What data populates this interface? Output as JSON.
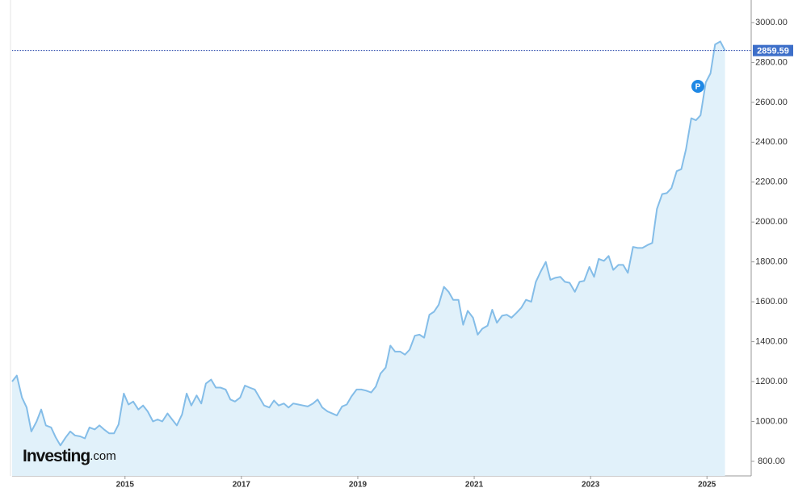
{
  "chart_data": {
    "type": "area",
    "color": "#84bde8",
    "fill_color": "#e1f1fa",
    "logo": "Investing",
    "logo_suffix": ".com",
    "last_label": "2859.59",
    "x": [
      2013.06,
      2013.14,
      2013.23,
      2013.31,
      2013.39,
      2013.48,
      2013.56,
      2013.64,
      2013.73,
      2013.81,
      2013.89,
      2013.98,
      2014.06,
      2014.14,
      2014.23,
      2014.31,
      2014.39,
      2014.48,
      2014.56,
      2014.64,
      2014.73,
      2014.81,
      2014.89,
      2014.98,
      2015.06,
      2015.14,
      2015.23,
      2015.31,
      2015.39,
      2015.48,
      2015.56,
      2015.64,
      2015.73,
      2015.81,
      2015.89,
      2015.98,
      2016.06,
      2016.14,
      2016.23,
      2016.31,
      2016.39,
      2016.48,
      2016.56,
      2016.64,
      2016.73,
      2016.81,
      2016.89,
      2016.98,
      2017.06,
      2017.14,
      2017.23,
      2017.31,
      2017.39,
      2017.48,
      2017.56,
      2017.64,
      2017.73,
      2017.81,
      2017.89,
      2017.98,
      2018.06,
      2018.14,
      2018.23,
      2018.31,
      2018.39,
      2018.48,
      2018.56,
      2018.64,
      2018.73,
      2018.81,
      2018.89,
      2018.98,
      2019.06,
      2019.14,
      2019.23,
      2019.31,
      2019.39,
      2019.48,
      2019.56,
      2019.64,
      2019.73,
      2019.81,
      2019.89,
      2019.98,
      2020.06,
      2020.14,
      2020.23,
      2020.31,
      2020.39,
      2020.48,
      2020.56,
      2020.64,
      2020.73,
      2020.81,
      2020.89,
      2020.98,
      2021.06,
      2021.14,
      2021.23,
      2021.31,
      2021.39,
      2021.48,
      2021.56,
      2021.64,
      2021.73,
      2021.81,
      2021.89,
      2021.98,
      2022.06,
      2022.14,
      2022.23,
      2022.31,
      2022.39,
      2022.48,
      2022.56,
      2022.64,
      2022.73,
      2022.81,
      2022.89,
      2022.98,
      2023.06,
      2023.14,
      2023.23,
      2023.31,
      2023.39,
      2023.48,
      2023.56,
      2023.64,
      2023.73,
      2023.81,
      2023.89,
      2023.98,
      2024.06,
      2024.14,
      2024.23,
      2024.31,
      2024.39,
      2024.48,
      2024.56,
      2024.64,
      2024.73,
      2024.81,
      2024.89,
      2024.98,
      2025.06,
      2025.14,
      2025.23,
      2025.31
    ],
    "series": [
      {
        "values": [
          1200,
          1230,
          1120,
          1070,
          950,
          1000,
          1060,
          980,
          970,
          920,
          880,
          920,
          950,
          930,
          925,
          915,
          970,
          960,
          980,
          960,
          940,
          940,
          985,
          1140,
          1085,
          1100,
          1060,
          1080,
          1050,
          1000,
          1010,
          1000,
          1040,
          1010,
          980,
          1035,
          1140,
          1080,
          1130,
          1090,
          1190,
          1210,
          1170,
          1170,
          1160,
          1110,
          1100,
          1120,
          1180,
          1170,
          1160,
          1120,
          1080,
          1070,
          1105,
          1080,
          1090,
          1070,
          1090,
          1085,
          1080,
          1075,
          1090,
          1110,
          1070,
          1050,
          1040,
          1030,
          1075,
          1085,
          1125,
          1160,
          1160,
          1155,
          1145,
          1175,
          1240,
          1270,
          1380,
          1350,
          1350,
          1335,
          1360,
          1430,
          1435,
          1420,
          1535,
          1550,
          1585,
          1675,
          1650,
          1610,
          1610,
          1485,
          1555,
          1520,
          1435,
          1465,
          1480,
          1560,
          1495,
          1530,
          1535,
          1520,
          1545,
          1570,
          1610,
          1600,
          1700,
          1750,
          1800,
          1710,
          1720,
          1725,
          1700,
          1695,
          1650,
          1700,
          1705,
          1775,
          1725,
          1815,
          1805,
          1830,
          1760,
          1785,
          1785,
          1745,
          1875,
          1870,
          1870,
          1885,
          1895,
          2065,
          2140,
          2145,
          2170,
          2255,
          2265,
          2365,
          2520,
          2510,
          2535,
          2700,
          2745,
          2890,
          2905,
          2859.59
        ]
      }
    ],
    "xlim": [
      2013.06,
      2025.76
    ],
    "xticks": [
      2015,
      2017,
      2019,
      2021,
      2023,
      2025
    ],
    "ylim": [
      727,
      3113
    ],
    "yticks": [
      {
        "value": 800,
        "label": "800.00"
      },
      {
        "value": 1000,
        "label": "1000.00"
      },
      {
        "value": 1200,
        "label": "1200.00"
      },
      {
        "value": 1400,
        "label": "1400.00"
      },
      {
        "value": 1600,
        "label": "1600.00"
      },
      {
        "value": 1800,
        "label": "1800.00"
      },
      {
        "value": 2000,
        "label": "2000.00"
      },
      {
        "value": 2200,
        "label": "2200.00"
      },
      {
        "value": 2400,
        "label": "2400.00"
      },
      {
        "value": 2600,
        "label": "2600.00"
      },
      {
        "value": 2800,
        "label": "2800.00"
      },
      {
        "value": 3000,
        "label": "3000.00"
      }
    ]
  }
}
